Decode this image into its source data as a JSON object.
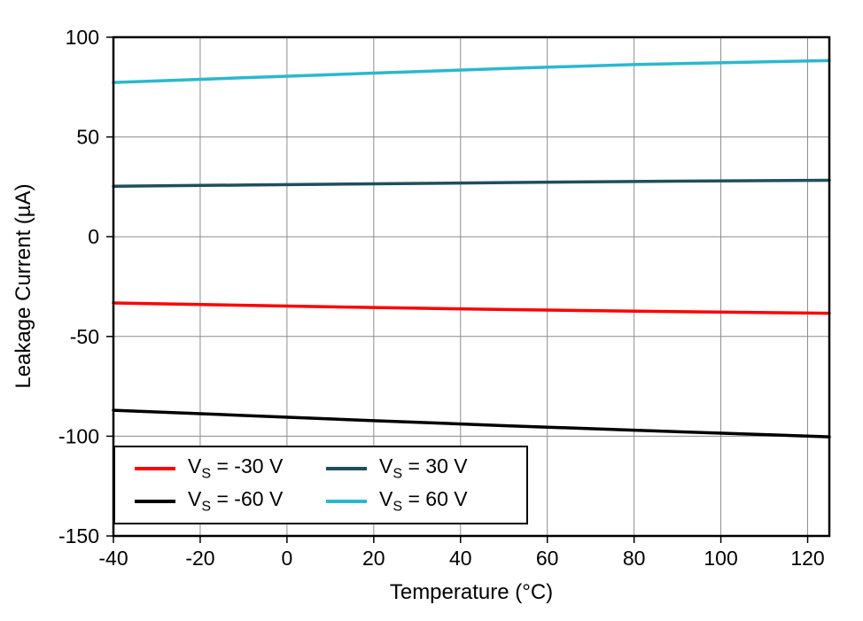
{
  "chart_data": {
    "type": "line",
    "title": "",
    "xlabel": "Temperature (°C)",
    "ylabel": "Leakage Current (µA)",
    "xlim": [
      -40,
      125
    ],
    "ylim": [
      -150,
      100
    ],
    "xticks": [
      -40,
      -20,
      0,
      20,
      40,
      60,
      80,
      100,
      120
    ],
    "yticks": [
      -150,
      -100,
      -50,
      0,
      50,
      100
    ],
    "grid": true,
    "grid_color": "#8c8c8c",
    "frame_color": "#000000",
    "legend_position": "lower left",
    "x": [
      -40,
      -10,
      20,
      50,
      80,
      125
    ],
    "series": [
      {
        "name": "VS = -30 V",
        "color": "#fe0000",
        "legend": {
          "base": "V",
          "sub": "S",
          "rest": " = -30 V"
        },
        "values": [
          -33.2,
          -34.4,
          -35.5,
          -36.5,
          -37.3,
          -38.4
        ]
      },
      {
        "name": "VS = 30 V",
        "color": "#1f4e5f",
        "legend": {
          "base": "V",
          "sub": "S",
          "rest": " = 30 V"
        },
        "values": [
          25.3,
          25.9,
          26.5,
          27.1,
          27.7,
          28.3
        ]
      },
      {
        "name": "VS = -60 V",
        "color": "#000000",
        "legend": {
          "base": "V",
          "sub": "S",
          "rest": " = -60 V"
        },
        "values": [
          -87.0,
          -89.6,
          -92.2,
          -94.7,
          -97.0,
          -100.3
        ]
      },
      {
        "name": "VS = 60 V",
        "color": "#2bb8ce",
        "legend": {
          "base": "V",
          "sub": "S",
          "rest": " = 60 V"
        },
        "values": [
          77.3,
          79.7,
          82.0,
          84.3,
          86.3,
          88.3
        ]
      }
    ]
  }
}
